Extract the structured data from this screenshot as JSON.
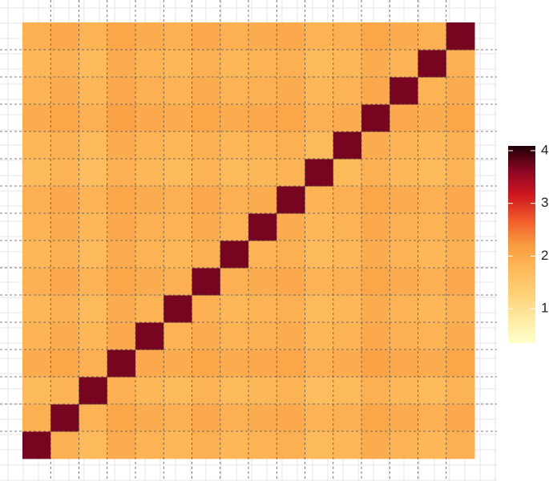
{
  "chart_data": {
    "type": "heatmap",
    "z": [
      [
        3.7,
        1.9,
        1.75,
        1.95,
        1.85,
        1.8,
        1.9,
        1.8,
        1.85,
        1.9,
        1.75,
        1.8,
        1.95,
        1.85,
        1.8,
        1.9
      ],
      [
        1.9,
        3.7,
        1.85,
        2.05,
        1.95,
        1.9,
        2.0,
        1.9,
        1.95,
        2.0,
        1.85,
        1.9,
        2.05,
        1.95,
        1.9,
        2.0
      ],
      [
        1.75,
        1.85,
        3.7,
        1.9,
        1.8,
        1.75,
        1.85,
        1.75,
        1.8,
        1.85,
        1.7,
        1.75,
        1.9,
        1.8,
        1.75,
        1.85
      ],
      [
        1.95,
        2.05,
        1.9,
        3.7,
        2.0,
        1.95,
        2.05,
        1.95,
        2.0,
        2.05,
        1.9,
        1.95,
        2.1,
        2.0,
        1.95,
        2.05
      ],
      [
        1.85,
        1.95,
        1.8,
        2.0,
        3.7,
        1.85,
        1.95,
        1.85,
        1.9,
        1.95,
        1.8,
        1.85,
        2.0,
        1.9,
        1.85,
        1.95
      ],
      [
        1.8,
        1.9,
        1.75,
        1.95,
        1.85,
        3.7,
        1.9,
        1.8,
        1.85,
        1.9,
        1.75,
        1.8,
        1.95,
        1.85,
        1.8,
        1.9
      ],
      [
        1.9,
        2.0,
        1.85,
        2.05,
        1.95,
        1.9,
        3.7,
        1.9,
        1.95,
        2.0,
        1.85,
        1.9,
        2.05,
        1.95,
        1.9,
        2.0
      ],
      [
        1.8,
        1.9,
        1.75,
        1.95,
        1.85,
        1.8,
        1.9,
        3.7,
        1.85,
        1.9,
        1.75,
        1.8,
        1.95,
        1.85,
        1.8,
        1.9
      ],
      [
        1.85,
        1.95,
        1.8,
        2.0,
        1.9,
        1.85,
        1.95,
        1.85,
        3.7,
        1.95,
        1.8,
        1.85,
        2.0,
        1.9,
        1.85,
        1.95
      ],
      [
        1.9,
        2.0,
        1.85,
        2.05,
        1.95,
        1.9,
        2.0,
        1.9,
        1.95,
        3.7,
        1.85,
        1.9,
        2.05,
        1.95,
        1.9,
        2.0
      ],
      [
        1.75,
        1.85,
        1.7,
        1.9,
        1.8,
        1.75,
        1.85,
        1.75,
        1.8,
        1.85,
        3.7,
        1.75,
        1.9,
        1.8,
        1.75,
        1.85
      ],
      [
        1.8,
        1.9,
        1.75,
        1.95,
        1.85,
        1.8,
        1.9,
        1.8,
        1.85,
        1.9,
        1.75,
        3.7,
        1.95,
        1.85,
        1.8,
        1.9
      ],
      [
        1.95,
        2.05,
        1.9,
        2.1,
        2.0,
        1.95,
        2.05,
        1.95,
        2.0,
        2.05,
        1.9,
        1.95,
        3.7,
        2.0,
        1.95,
        2.05
      ],
      [
        1.85,
        1.95,
        1.8,
        2.0,
        1.9,
        1.85,
        1.95,
        1.85,
        1.9,
        1.95,
        1.8,
        1.85,
        2.0,
        3.7,
        1.85,
        1.95
      ],
      [
        1.8,
        1.9,
        1.75,
        1.95,
        1.85,
        1.8,
        1.9,
        1.8,
        1.85,
        1.9,
        1.75,
        1.8,
        1.95,
        1.85,
        3.7,
        1.9
      ],
      [
        1.9,
        2.0,
        1.85,
        2.05,
        1.95,
        1.9,
        2.0,
        1.9,
        1.95,
        2.0,
        1.85,
        1.9,
        2.05,
        1.95,
        1.9,
        3.7
      ]
    ],
    "zlim": [
      0.35,
      4.09
    ],
    "zticks": [
      1,
      2,
      3,
      4
    ],
    "colorscale": [
      "#ffffcc",
      "#feeaa0",
      "#fed076",
      "#fdba5a",
      "#f99a3f",
      "#ef5a2a",
      "#d0171f",
      "#8a0624",
      "#200005"
    ]
  }
}
